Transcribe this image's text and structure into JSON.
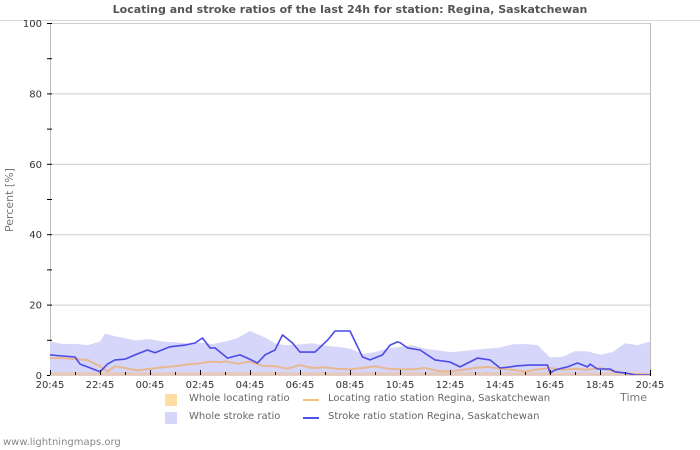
{
  "header": {
    "title": "Locating and stroke ratios of the last 24h for station: Regina, Saskatchewan"
  },
  "footer": {
    "text": "www.lightningmaps.org"
  },
  "legend": {
    "items": [
      {
        "label": "Whole locating ratio",
        "type": "area",
        "color": "#ffdea6"
      },
      {
        "label": "Locating ratio station Regina, Saskatchewan",
        "type": "line",
        "color": "#f0c480"
      },
      {
        "label": "Whole stroke ratio",
        "type": "area",
        "color": "#d6d6fa"
      },
      {
        "label": "Stroke ratio station Regina, Saskatchewan",
        "type": "line",
        "color": "#5050e8"
      }
    ]
  },
  "colors": {
    "whole_locating": "#ffdea6",
    "locating_station": "#e8b890",
    "whole_stroke": "#d6d6fa",
    "stroke_station": "#4b4be6",
    "grid": "#cccccc",
    "axis": "#bbbbbb"
  },
  "chart_data": {
    "type": "line",
    "title": "Locating and stroke ratios of the last 24h for station: Regina, Saskatchewan",
    "xlabel": "Time",
    "ylabel": "Percent   [%]",
    "ylim": [
      0,
      100
    ],
    "yticks": [
      0,
      20,
      40,
      60,
      80,
      100
    ],
    "xtick_labels": [
      "20:45",
      "22:45",
      "00:45",
      "02:45",
      "04:45",
      "06:45",
      "08:45",
      "10:45",
      "12:45",
      "14:45",
      "16:45",
      "18:45",
      "20:45"
    ],
    "xlim_hours": [
      0,
      24
    ],
    "grid": true,
    "legend_position": "bottom",
    "series": [
      {
        "name": "Whole stroke ratio",
        "kind": "area",
        "x_hours": [
          0,
          0.5,
          1.0,
          1.5,
          2.0,
          2.2,
          2.6,
          3.0,
          3.4,
          4.0,
          4.5,
          5.0,
          5.5,
          6.0,
          6.5,
          7.0,
          7.5,
          8.0,
          8.5,
          9.0,
          9.4,
          10.0,
          10.5,
          11.0,
          11.5,
          12.0,
          12.5,
          13.0,
          13.5,
          14.0,
          14.5,
          15.0,
          15.5,
          16.0,
          16.5,
          17.0,
          17.5,
          18.0,
          18.5,
          19.0,
          19.5,
          20.0,
          20.5,
          21.0,
          21.5,
          22.0,
          22.5,
          23.0,
          23.5,
          24.0
        ],
        "values": [
          9.5,
          8.8,
          8.9,
          8.5,
          9.5,
          11.8,
          11.0,
          10.5,
          9.8,
          10.2,
          9.5,
          9.3,
          9.0,
          9.2,
          8.8,
          9.5,
          10.5,
          12.5,
          11.0,
          9.0,
          8.5,
          8.7,
          9.0,
          8.3,
          8.0,
          7.5,
          6.0,
          6.5,
          7.5,
          8.0,
          8.5,
          7.5,
          7.0,
          6.5,
          6.8,
          7.2,
          7.5,
          7.8,
          8.7,
          8.8,
          8.5,
          5.0,
          5.2,
          6.8,
          6.7,
          5.8,
          6.5,
          9.0,
          8.5,
          9.5
        ]
      },
      {
        "name": "Whole locating ratio",
        "kind": "area",
        "x_hours": [
          0,
          4,
          8,
          12,
          16,
          20,
          24
        ],
        "values": [
          0.8,
          0.7,
          0.8,
          0.7,
          0.8,
          0.7,
          0.6
        ]
      },
      {
        "name": "Locating ratio station Regina, Saskatchewan",
        "kind": "line",
        "x_hours": [
          0,
          0.5,
          1.0,
          1.5,
          2.0,
          2.3,
          2.6,
          3.0,
          3.5,
          4.0,
          4.5,
          5.0,
          5.5,
          6.0,
          6.4,
          6.8,
          7.0,
          7.5,
          8.0,
          8.5,
          9.0,
          9.5,
          10.0,
          10.5,
          11.0,
          11.5,
          12.0,
          12.5,
          13.0,
          13.5,
          14.0,
          14.5,
          15.0,
          15.5,
          16.0,
          16.5,
          17.0,
          17.5,
          18.0,
          18.5,
          19.0,
          19.5,
          20.0,
          20.5,
          21.0,
          21.5,
          22.0,
          22.5,
          23.0,
          24.0
        ],
        "values": [
          4.8,
          4.8,
          4.5,
          4.3,
          2.5,
          1.0,
          2.5,
          2.0,
          1.3,
          1.8,
          2.2,
          2.5,
          3.0,
          3.3,
          3.8,
          3.6,
          3.9,
          3.2,
          3.8,
          2.6,
          2.5,
          1.8,
          2.8,
          2.0,
          2.2,
          1.8,
          1.6,
          2.0,
          2.5,
          1.8,
          1.6,
          1.6,
          2.0,
          1.2,
          1.0,
          1.5,
          2.0,
          2.3,
          1.8,
          1.5,
          1.0,
          1.6,
          2.0,
          1.5,
          1.8,
          1.5,
          2.0,
          1.2,
          0.5,
          0.0
        ]
      },
      {
        "name": "Stroke ratio station Regina, Saskatchewan",
        "kind": "line",
        "x_hours": [
          0,
          0.5,
          1.0,
          1.2,
          1.5,
          2.0,
          2.3,
          2.6,
          3.0,
          3.4,
          3.9,
          4.2,
          4.8,
          5.4,
          5.8,
          6.1,
          6.4,
          6.6,
          7.1,
          7.6,
          7.9,
          8.3,
          8.6,
          9.0,
          9.3,
          9.7,
          10.0,
          10.6,
          11.1,
          11.4,
          12.0,
          12.5,
          12.8,
          13.3,
          13.6,
          13.9,
          14.0,
          14.3,
          14.8,
          15.4,
          16.0,
          16.4,
          17.1,
          17.6,
          18.0,
          18.4,
          18.7,
          19.2,
          19.9,
          20.0,
          20.2,
          20.4,
          20.7,
          21.1,
          21.5,
          21.6,
          21.9,
          22.2,
          22.4,
          22.6,
          23.0,
          23.4,
          24.0
        ],
        "values": [
          5.7,
          5.4,
          5.1,
          3.1,
          2.3,
          0.9,
          3.1,
          4.3,
          4.5,
          5.7,
          7.1,
          6.3,
          8.0,
          8.5,
          9.1,
          10.5,
          7.7,
          7.7,
          4.8,
          5.7,
          4.8,
          3.4,
          5.7,
          7.1,
          11.4,
          9.1,
          6.5,
          6.5,
          9.9,
          12.5,
          12.5,
          5.1,
          4.3,
          5.7,
          8.5,
          9.4,
          9.2,
          7.7,
          7.1,
          4.3,
          3.7,
          2.3,
          4.8,
          4.3,
          2.0,
          2.3,
          2.6,
          2.8,
          2.8,
          0.6,
          1.4,
          1.8,
          2.3,
          3.4,
          2.3,
          3.1,
          1.7,
          1.7,
          1.7,
          0.9,
          0.6,
          0.0,
          0.0
        ]
      }
    ]
  }
}
